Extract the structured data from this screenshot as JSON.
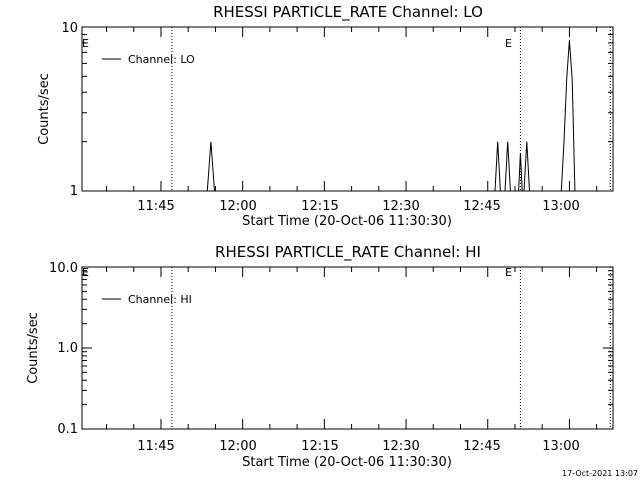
{
  "timestamp": "17-Oct-2021 13:07",
  "chart_data": [
    {
      "type": "line",
      "title": "RHESSI PARTICLE_RATE Channel: LO",
      "xlabel": "Start Time (20-Oct-06 11:30:30)",
      "ylabel": "Counts/sec",
      "y_scale": "log",
      "ylim": [
        1,
        10
      ],
      "y_ticks": [
        "1",
        "10"
      ],
      "x_ticks": [
        "11:45",
        "12:00",
        "12:15",
        "12:30",
        "12:45",
        "13:00"
      ],
      "legend": [
        "Channel: LO"
      ],
      "legend_placement": "top-left",
      "markers": [
        {
          "label": "E",
          "time": "11:30:30"
        },
        {
          "label": "E",
          "time": "12:51:00"
        }
      ],
      "dotted_lines": [
        "11:47:00",
        "12:51:00",
        "13:07:30"
      ],
      "series": [
        {
          "name": "Channel: LO",
          "points": [
            [
              "11:53:30",
              1
            ],
            [
              "11:54:10",
              2
            ],
            [
              "11:54:50",
              1
            ],
            [
              "12:46:20",
              1
            ],
            [
              "12:46:50",
              2
            ],
            [
              "12:47:20",
              1
            ],
            [
              "12:48:10",
              1
            ],
            [
              "12:48:40",
              2
            ],
            [
              "12:49:10",
              1
            ],
            [
              "12:50:40",
              1
            ],
            [
              "12:51:00",
              1.7
            ],
            [
              "12:51:20",
              1
            ],
            [
              "12:51:40",
              1
            ],
            [
              "12:52:10",
              2
            ],
            [
              "12:52:40",
              1
            ],
            [
              "12:58:30",
              1
            ],
            [
              "12:59:00",
              2
            ],
            [
              "12:59:30",
              4.8
            ],
            [
              "13:00:00",
              8.3
            ],
            [
              "13:00:30",
              4.8
            ],
            [
              "13:01:00",
              1
            ]
          ]
        }
      ]
    },
    {
      "type": "line",
      "title": "RHESSI PARTICLE_RATE Channel: HI",
      "xlabel": "Start Time (20-Oct-06 11:30:30)",
      "ylabel": "Counts/sec",
      "y_scale": "log",
      "ylim": [
        0.1,
        10
      ],
      "y_ticks": [
        "0.1",
        "1.0",
        "10.0"
      ],
      "x_ticks": [
        "11:45",
        "12:00",
        "12:15",
        "12:30",
        "12:45",
        "13:00"
      ],
      "legend": [
        "Channel: HI"
      ],
      "legend_placement": "top-left",
      "markers": [
        {
          "label": "E",
          "time": "11:30:30"
        },
        {
          "label": "E",
          "time": "12:51:00"
        }
      ],
      "dotted_lines": [
        "11:47:00",
        "12:51:00",
        "13:07:30"
      ],
      "series": [
        {
          "name": "Channel: HI",
          "points": []
        }
      ]
    }
  ]
}
